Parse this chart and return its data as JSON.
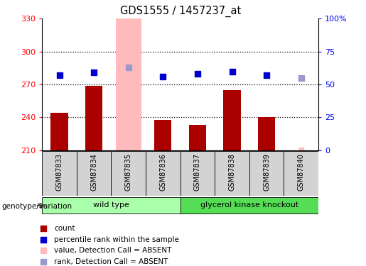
{
  "title": "GDS1555 / 1457237_at",
  "samples": [
    "GSM87833",
    "GSM87834",
    "GSM87835",
    "GSM87836",
    "GSM87837",
    "GSM87838",
    "GSM87839",
    "GSM87840"
  ],
  "bar_values": [
    244,
    269,
    null,
    238,
    233,
    265,
    240,
    null
  ],
  "rank_values": [
    57,
    59,
    63,
    56,
    58,
    60,
    57,
    55
  ],
  "absent_bar_idx": 2,
  "absent_rank_idx": 2,
  "absent_sample_idx": 7,
  "ylim_left": [
    210,
    330
  ],
  "ylim_right": [
    0,
    100
  ],
  "yticks_left": [
    210,
    240,
    270,
    300,
    330
  ],
  "yticks_right": [
    0,
    25,
    50,
    75,
    100
  ],
  "ytick_labels_right": [
    "0",
    "25",
    "50",
    "75",
    "100%"
  ],
  "bar_color": "#aa0000",
  "rank_color": "#0000cc",
  "absent_bar_color": "#ffbbbb",
  "absent_rank_color": "#9999cc",
  "groups": [
    {
      "label": "wild type",
      "start": 0,
      "end": 3,
      "color": "#aaffaa"
    },
    {
      "label": "glycerol kinase knockout",
      "start": 4,
      "end": 7,
      "color": "#55dd55"
    }
  ],
  "legend_items": [
    {
      "label": "count",
      "color": "#aa0000"
    },
    {
      "label": "percentile rank within the sample",
      "color": "#0000cc"
    },
    {
      "label": "value, Detection Call = ABSENT",
      "color": "#ffbbbb"
    },
    {
      "label": "rank, Detection Call = ABSENT",
      "color": "#9999cc"
    }
  ],
  "xlabel_area": "genotype/variation",
  "bg_color": "#ffffff"
}
